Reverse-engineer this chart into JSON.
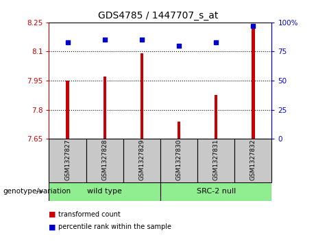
{
  "title": "GDS4785 / 1447707_s_at",
  "samples": [
    "GSM1327827",
    "GSM1327828",
    "GSM1327829",
    "GSM1327830",
    "GSM1327831",
    "GSM1327832"
  ],
  "bar_values": [
    7.95,
    7.97,
    8.09,
    7.74,
    7.875,
    8.22
  ],
  "dot_values": [
    83,
    85,
    85,
    80,
    83,
    97
  ],
  "y_min": 7.65,
  "y_max": 8.25,
  "y_ticks": [
    7.65,
    7.8,
    7.95,
    8.1,
    8.25
  ],
  "y_tick_labels": [
    "7.65",
    "7.8",
    "7.95",
    "8.1",
    "8.25"
  ],
  "y2_ticks": [
    0,
    25,
    50,
    75,
    100
  ],
  "y2_tick_labels": [
    "0",
    "25",
    "50",
    "75",
    "100%"
  ],
  "grid_lines": [
    7.8,
    7.95,
    8.1
  ],
  "bar_color": "#CC0000",
  "dot_color": "#0000CC",
  "bar_width": 0.08,
  "background_color": "#FFFFFF",
  "plot_bg_color": "#FFFFFF",
  "sample_box_color": "#C8C8C8",
  "genotype_label": "genotype/variation",
  "group1_label": "wild type",
  "group2_label": "SRC-2 null",
  "group_color": "#90EE90",
  "legend_red_label": "transformed count",
  "legend_blue_label": "percentile rank within the sample",
  "left_label_color": "#CC0000",
  "right_label_color": "#0000CC"
}
